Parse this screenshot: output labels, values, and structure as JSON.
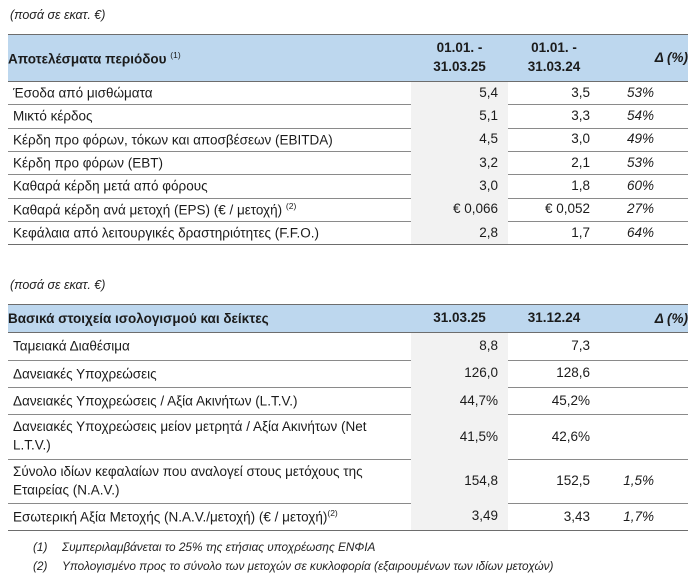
{
  "unit_note": "(ποσά σε εκατ. €)",
  "colors": {
    "header_bg": "#BDD7EE",
    "value_column_bg": "#F2F2F2",
    "border": "#6D6D6D"
  },
  "table1": {
    "title": "Αποτελέσματα περιόδου",
    "title_sup": "(1)",
    "col1_line1": "01.01. -",
    "col1_line2": "31.03.25",
    "col2_line1": "01.01. -",
    "col2_line2": "31.03.24",
    "delta_header": "Δ (%)",
    "rows": [
      {
        "label": "Έσοδα από μισθώματα",
        "v1": "5,4",
        "v2": "3,5",
        "delta": "53%"
      },
      {
        "label": "Μικτό κέρδος",
        "v1": "5,1",
        "v2": "3,3",
        "delta": "54%"
      },
      {
        "label": "Κέρδη προ φόρων, τόκων και αποσβέσεων (EBITDA)",
        "v1": "4,5",
        "v2": "3,0",
        "delta": "49%"
      },
      {
        "label": "Κέρδη προ φόρων (EBT)",
        "v1": "3,2",
        "v2": "2,1",
        "delta": "53%"
      },
      {
        "label": "Καθαρά κέρδη μετά από φόρους",
        "v1": "3,0",
        "v2": "1,8",
        "delta": "60%"
      },
      {
        "label": "Καθαρά κέρδη ανά μετοχή (EPS) (€ / μετοχή)",
        "sup": "(2)",
        "v1": "€ 0,066",
        "v2": "€ 0,052",
        "delta": "27%"
      },
      {
        "label": "Κεφάλαια από λειτουργικές δραστηριότητες (F.F.O.)",
        "v1": "2,8",
        "v2": "1,7",
        "delta": "64%"
      }
    ]
  },
  "table2": {
    "title": "Βασικά στοιχεία ισολογισμού και δείκτες",
    "col1": "31.03.25",
    "col2": "31.12.24",
    "delta_header": "Δ (%)",
    "rows": [
      {
        "label": "Ταμειακά Διαθέσιμα",
        "v1": "8,8",
        "v2": "7,3",
        "delta": ""
      },
      {
        "label": "Δανειακές Υποχρεώσεις",
        "v1": "126,0",
        "v2": "128,6",
        "delta": ""
      },
      {
        "label": "Δανειακές Υποχρεώσεις / Αξία Ακινήτων (L.T.V.)",
        "v1": "44,7%",
        "v2": "45,2%",
        "delta": ""
      },
      {
        "label": "Δανειακές Υποχρεώσεις μείον μετρητά / Αξία Ακινήτων (Net L.T.V.)",
        "v1": "41,5%",
        "v2": "42,6%",
        "delta": ""
      },
      {
        "label": "Σύνολο ιδίων κεφαλαίων που αναλογεί στους μετόχους της Εταιρείας (N.A.V.)",
        "v1": "154,8",
        "v2": "152,5",
        "delta": "1,5%"
      },
      {
        "label": "Εσωτερική Αξία Μετοχής (N.A.V./μετοχή) (€ / μετοχή)",
        "sup": "(2)",
        "v1": "3,49",
        "v2": "3,43",
        "delta": "1,7%"
      }
    ]
  },
  "footnotes": [
    {
      "num": "(1)",
      "text": "Συμπεριλαμβάνεται το 25% της ετήσιας υποχρέωσης ΕΝΦΙΑ"
    },
    {
      "num": "(2)",
      "text": "Υπολογισμένο προς το σύνολο των μετοχών σε κυκλοφορία (εξαιρουμένων των ιδίων μετοχών)"
    }
  ]
}
